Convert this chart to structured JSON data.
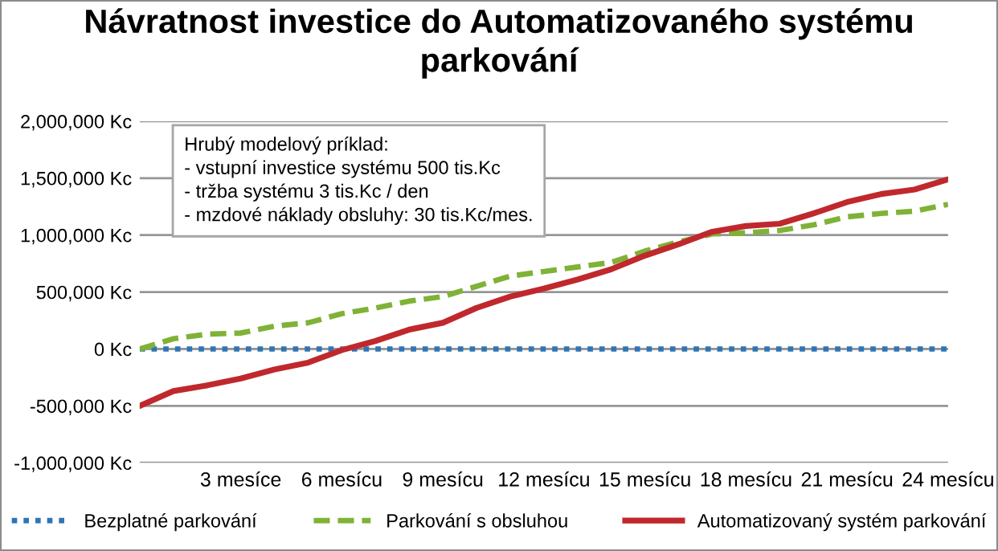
{
  "chart_data": {
    "type": "line",
    "title": "Návratnost investice do Automatizovaného systému\nparkování",
    "categories": [
      null,
      null,
      null,
      "3 mesíce",
      null,
      null,
      "6 mesícu",
      null,
      null,
      "9 mesícu",
      null,
      null,
      "12 mesícu",
      null,
      null,
      "15 mesícu",
      null,
      null,
      "18 mesícu",
      null,
      null,
      "21 mesícu",
      null,
      null,
      "24 mesícu"
    ],
    "series": [
      {
        "name": "Bezplatné parkování",
        "color": "#2e75b6",
        "line_style": "dotted",
        "values": [
          0,
          0,
          0,
          0,
          0,
          0,
          0,
          0,
          0,
          0,
          0,
          0,
          0,
          0,
          0,
          0,
          0,
          0,
          0,
          0,
          0,
          0,
          0,
          0,
          0
        ]
      },
      {
        "name": "Parkování s obsluhou",
        "color": "#7fb236",
        "line_style": "dashed",
        "values": [
          0,
          90000,
          130000,
          140000,
          200000,
          230000,
          310000,
          360000,
          420000,
          460000,
          550000,
          640000,
          680000,
          720000,
          760000,
          860000,
          940000,
          1010000,
          1020000,
          1040000,
          1090000,
          1160000,
          1190000,
          1210000,
          1270000
        ]
      },
      {
        "name": "Automatizovaný systém parkování",
        "color": "#c0282d",
        "line_style": "solid",
        "values": [
          -500000,
          -370000,
          -320000,
          -260000,
          -180000,
          -120000,
          -10000,
          70000,
          170000,
          230000,
          360000,
          460000,
          530000,
          610000,
          700000,
          820000,
          920000,
          1030000,
          1080000,
          1100000,
          1190000,
          1290000,
          1360000,
          1400000,
          1490000
        ]
      }
    ],
    "ylim": [
      -1000000,
      2000000
    ],
    "yticks": [
      {
        "value": -1000000,
        "label": "-1,000,000 Kc"
      },
      {
        "value": -500000,
        "label": "-500,000 Kc"
      },
      {
        "value": 0,
        "label": "0 Kc"
      },
      {
        "value": 500000,
        "label": "500,000 Kc"
      },
      {
        "value": 1000000,
        "label": "1,000,000 Kc"
      },
      {
        "value": 1500000,
        "label": "1,500,000 Kc"
      },
      {
        "value": 2000000,
        "label": "2,000,000 Kc"
      }
    ],
    "grid": "y",
    "legend": "bottom",
    "marker": "none",
    "annotations": [
      "Hrubý modelový príklad:\n- vstupní investice systému 500 tis.Kc\n- tržba systému 3 tis.Kc / den\n- mzdové náklady obsluhy: 30 tis.Kc/mes."
    ]
  }
}
